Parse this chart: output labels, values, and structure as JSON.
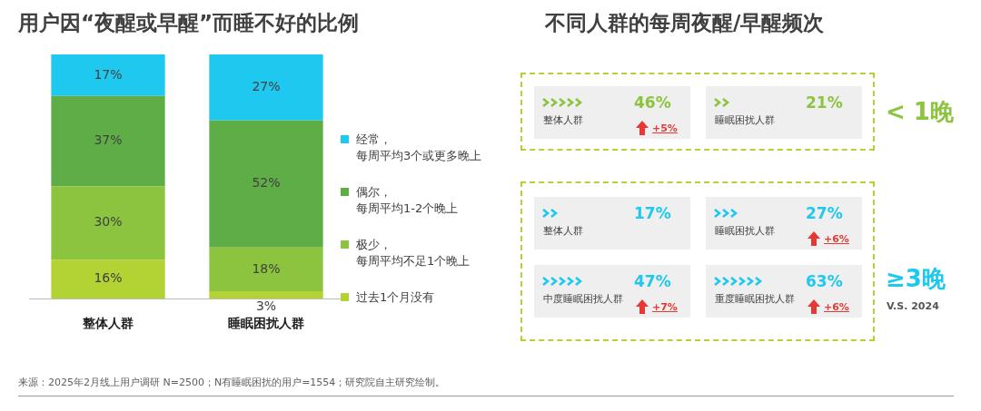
{
  "chart_data": [
    {
      "type": "bar",
      "title": "用户因“夜醒或早醒”而睡不好的比例",
      "categories": [
        "整体人群",
        "睡眠困扰人群"
      ],
      "stacked": true,
      "data_labels": false,
      "legend": "right",
      "series": [
        {
          "name": "过去1个月没有",
          "color": "#b3d335",
          "values": [
            16,
            3
          ],
          "value_labels": [
            "16%",
            "3%"
          ]
        },
        {
          "name": "极少，每周平均不足1个晚上",
          "color": "#8cc43f",
          "values": [
            30,
            18
          ],
          "value_labels": [
            "30%",
            "18%"
          ]
        },
        {
          "name": "偶尔，每周平均1-2个晚上",
          "color": "#5fad47",
          "values": [
            37,
            52
          ],
          "value_labels": [
            "37%",
            "52%"
          ]
        },
        {
          "name": "经常，每周平均3个或更多晚上",
          "color": "#1fc8ef",
          "values": [
            17,
            27
          ],
          "value_labels": [
            "17%",
            "27%"
          ]
        }
      ],
      "annotations": [
        "来源：2025年2月线上用户调研 N=2500；N有睡眠困扰的用户=1554；研究院自主研究绘制。"
      ]
    },
    {
      "type": "other",
      "title": "不同人群的每周夜醒/早醒频次",
      "categories": [
        "整体人群",
        "睡眠困扰人群",
        "整体人群",
        "睡眠困扰人群",
        "中度睡眠困扰人群",
        "重度睡眠困扰人群"
      ],
      "values": [
        46,
        21,
        17,
        27,
        47,
        63
      ],
      "value_labels": [
        "46%",
        "21%",
        "17%",
        "27%",
        "47%",
        "63%"
      ],
      "colors": [
        "#efefef",
        "#efefef",
        "#efefef",
        "#efefef",
        "#efefef",
        "#efefef"
      ],
      "annotations": [
        "< 1晚",
        "≥3晚",
        "V.S. 2024",
        "+5%",
        "+6%",
        "+7%",
        "+6%"
      ]
    }
  ]
}
